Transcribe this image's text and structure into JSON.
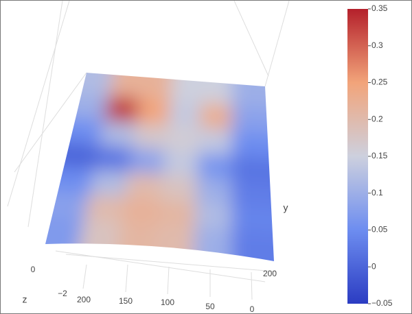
{
  "chart_data": {
    "type": "surface",
    "z_values": [
      [
        0.12,
        0.22,
        0.22,
        0.15,
        0.15,
        0.1
      ],
      [
        0.1,
        0.33,
        0.25,
        0.14,
        0.23,
        0.08
      ],
      [
        0.05,
        0.12,
        0.17,
        0.16,
        0.14,
        0.05
      ],
      [
        0.0,
        0.02,
        0.08,
        0.14,
        0.06,
        0.02
      ],
      [
        0.05,
        0.12,
        0.2,
        0.18,
        0.1,
        0.03
      ],
      [
        0.08,
        0.2,
        0.22,
        0.21,
        0.12,
        0.04
      ],
      [
        0.07,
        0.18,
        0.21,
        0.2,
        0.1,
        0.03
      ]
    ],
    "colorscale": [
      "#2b3cc2",
      "#6d8df0",
      "#cdd0de",
      "#f2a47a",
      "#b4202b"
    ],
    "clim": [
      -0.05,
      0.35
    ],
    "colorbar_ticks": [
      {
        "value": -0.05,
        "label": "−0.05"
      },
      0,
      0.05,
      0.1,
      0.15,
      0.2,
      0.25,
      0.3,
      0.35
    ],
    "z_axis_title": "z",
    "y_axis_title": "y",
    "z_ticks": [
      0,
      {
        "value": -2,
        "label": "−2"
      }
    ],
    "x_ticks": [
      200,
      150,
      100,
      50,
      0
    ],
    "y_ticks": [
      200
    ]
  }
}
